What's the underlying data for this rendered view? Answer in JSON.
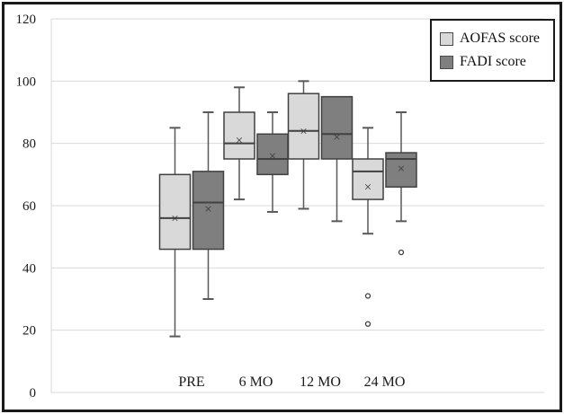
{
  "chart_data": {
    "type": "boxplot",
    "categories": [
      "PRE",
      "6 MO",
      "12 MO",
      "24 MO"
    ],
    "y_axis": {
      "min": 0,
      "max": 120,
      "step": 20,
      "ticks": [
        0,
        20,
        40,
        60,
        80,
        100,
        120
      ]
    },
    "grid": true,
    "legend_position": "top-right",
    "markers": {
      "mean": "×",
      "outlier": "circle"
    },
    "colors": {
      "frame": "#1a1a1a",
      "gridline": "#d9d9d9",
      "box_border": "#404040",
      "whisker": "#595959",
      "text": "#1a1a1a"
    },
    "series": [
      {
        "name": "AOFAS score",
        "color": "#d9d9d9",
        "boxes": [
          {
            "category": "PRE",
            "min": 18,
            "q1": 46,
            "median": 56,
            "mean": 56,
            "q3": 70,
            "max": 85,
            "outliers": []
          },
          {
            "category": "6 MO",
            "min": 62,
            "q1": 75,
            "median": 80,
            "mean": 81,
            "q3": 90,
            "max": 98,
            "outliers": []
          },
          {
            "category": "12 MO",
            "min": 59,
            "q1": 75,
            "median": 84,
            "mean": 84,
            "q3": 96,
            "max": 100,
            "outliers": []
          },
          {
            "category": "24 MO",
            "min": 51,
            "q1": 62,
            "median": 71,
            "mean": 66,
            "q3": 75,
            "max": 85,
            "outliers": [
              31,
              22
            ]
          }
        ]
      },
      {
        "name": "FADI score",
        "color": "#7f7f7f",
        "boxes": [
          {
            "category": "PRE",
            "min": 30,
            "q1": 46,
            "median": 61,
            "mean": 59,
            "q3": 71,
            "max": 90,
            "outliers": []
          },
          {
            "category": "6 MO",
            "min": 58,
            "q1": 70,
            "median": 75,
            "mean": 76,
            "q3": 83,
            "max": 90,
            "outliers": []
          },
          {
            "category": "12 MO",
            "min": 55,
            "q1": 75,
            "median": 83,
            "mean": 82,
            "q3": 95,
            "max": 95,
            "outliers": []
          },
          {
            "category": "24 MO",
            "min": 55,
            "q1": 66,
            "median": 75,
            "mean": 72,
            "q3": 77,
            "max": 90,
            "outliers": [
              45
            ]
          }
        ]
      }
    ]
  }
}
